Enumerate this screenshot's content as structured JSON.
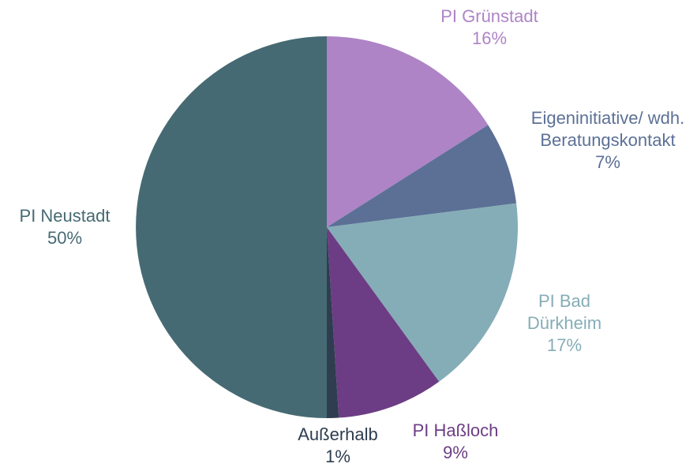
{
  "chart_data": {
    "type": "pie",
    "categories": [
      "PI Grünstadt",
      "Eigeninitiative/ wdh. Beratungskontakt",
      "PI Bad Dürkheim",
      "PI Haßloch",
      "Außerhalb",
      "PI Neustadt"
    ],
    "values": [
      16,
      7,
      17,
      9,
      1,
      50
    ],
    "value_labels": [
      "16%",
      "7%",
      "17%",
      "9%",
      "1%",
      "50%"
    ],
    "colors": [
      "#ae84c6",
      "#5c7096",
      "#85adb7",
      "#6c3d84",
      "#2e3d4f",
      "#466a73"
    ]
  }
}
